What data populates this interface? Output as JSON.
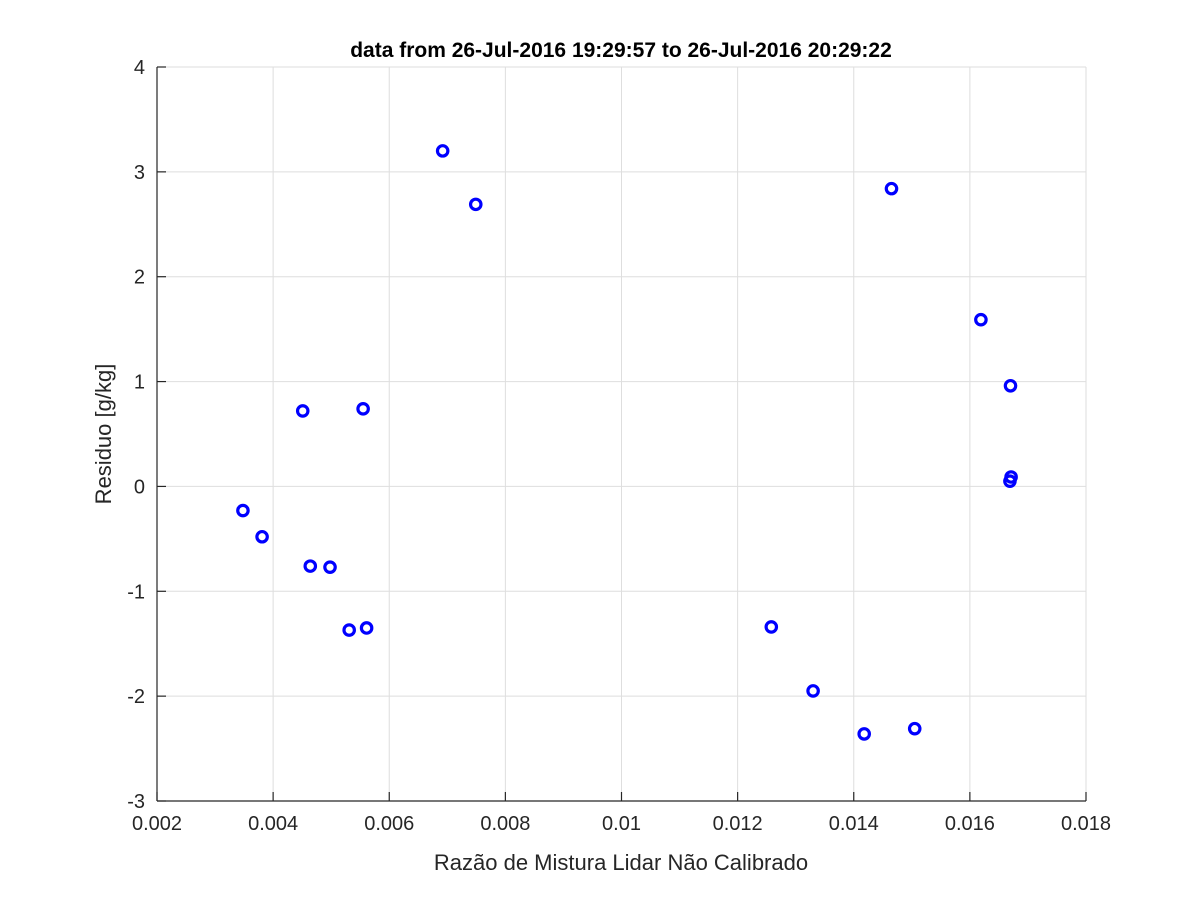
{
  "chart_data": {
    "type": "scatter",
    "title": "data from 26-Jul-2016 19:29:57 to 26-Jul-2016 20:29:22",
    "xlabel": "Razão de Mistura Lidar Não Calibrado",
    "ylabel": "Residuo [g/kg]",
    "xlim": [
      0.002,
      0.018
    ],
    "ylim": [
      -3,
      4
    ],
    "grid": true,
    "x_ticks": [
      0.002,
      0.004,
      0.006,
      0.008,
      0.01,
      0.012,
      0.014,
      0.016,
      0.018
    ],
    "x_tick_labels": [
      "0.002",
      "0.004",
      "0.006",
      "0.008",
      "0.01",
      "0.012",
      "0.014",
      "0.016",
      "0.018"
    ],
    "y_ticks": [
      -3,
      -2,
      -1,
      0,
      1,
      2,
      3,
      4
    ],
    "y_tick_labels": [
      "-3",
      "-2",
      "-1",
      "0",
      "1",
      "2",
      "3",
      "4"
    ],
    "marker": "circle",
    "marker_color": "#0000ff",
    "series": [
      {
        "points": [
          [
            0.00348,
            -0.23
          ],
          [
            0.00381,
            -0.48
          ],
          [
            0.00451,
            0.72
          ],
          [
            0.00464,
            -0.76
          ],
          [
            0.00498,
            -0.77
          ],
          [
            0.00531,
            -1.37
          ],
          [
            0.00555,
            0.74
          ],
          [
            0.00561,
            -1.35
          ],
          [
            0.00692,
            3.2
          ],
          [
            0.00749,
            2.69
          ],
          [
            0.01258,
            -1.34
          ],
          [
            0.0133,
            -1.95
          ],
          [
            0.01418,
            -2.36
          ],
          [
            0.01465,
            2.84
          ],
          [
            0.01505,
            -2.31
          ],
          [
            0.01619,
            1.59
          ],
          [
            0.0167,
            0.96
          ],
          [
            0.01669,
            0.05
          ],
          [
            0.01671,
            0.09
          ]
        ]
      }
    ]
  }
}
